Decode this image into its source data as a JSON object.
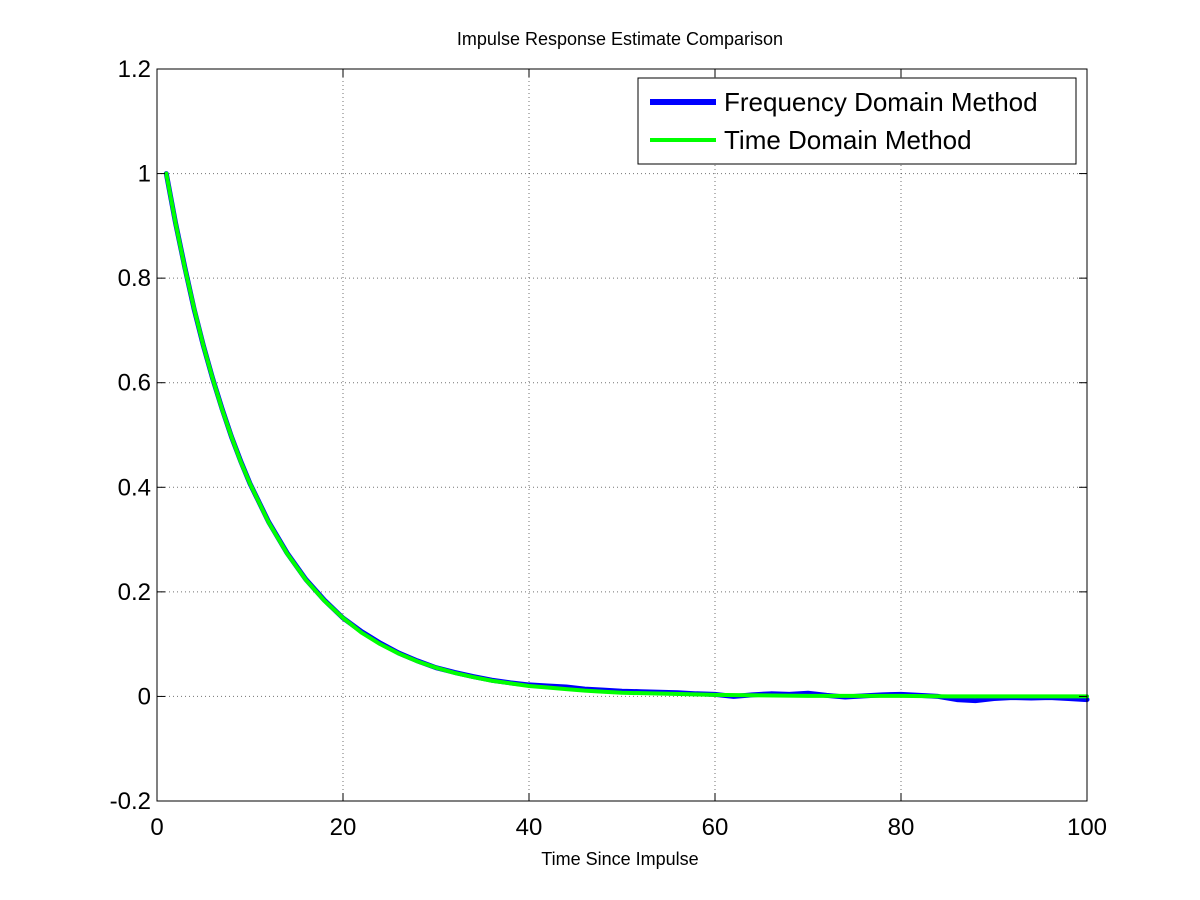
{
  "chart_data": {
    "type": "line",
    "title": "Impulse Response Estimate Comparison",
    "xlabel": "Time Since Impulse",
    "ylabel": "",
    "xlim": [
      0,
      100
    ],
    "ylim": [
      -0.2,
      1.2
    ],
    "xticks": [
      0,
      20,
      40,
      60,
      80,
      100
    ],
    "yticks": [
      -0.2,
      0,
      0.2,
      0.4,
      0.6,
      0.8,
      1,
      1.2
    ],
    "xtick_labels": [
      "0",
      "20",
      "40",
      "60",
      "80",
      "100"
    ],
    "ytick_labels": [
      "-0.2",
      "0",
      "0.2",
      "0.4",
      "0.6",
      "0.8",
      "1",
      "1.2"
    ],
    "grid": true,
    "legend_position": "top-right",
    "series": [
      {
        "name": "Frequency Domain Method",
        "color": "#0000ff",
        "x": [
          1,
          2,
          3,
          4,
          5,
          6,
          7,
          8,
          9,
          10,
          12,
          14,
          16,
          18,
          20,
          22,
          24,
          26,
          28,
          30,
          32,
          34,
          36,
          38,
          40,
          42,
          44,
          46,
          48,
          50,
          52,
          54,
          56,
          58,
          60,
          62,
          64,
          66,
          68,
          70,
          72,
          74,
          76,
          78,
          80,
          82,
          84,
          86,
          88,
          90,
          92,
          94,
          96,
          98,
          100
        ],
        "y": [
          1.0,
          0.905,
          0.82,
          0.74,
          0.67,
          0.607,
          0.55,
          0.497,
          0.45,
          0.407,
          0.334,
          0.274,
          0.224,
          0.184,
          0.15,
          0.124,
          0.102,
          0.083,
          0.068,
          0.055,
          0.046,
          0.038,
          0.031,
          0.026,
          0.022,
          0.02,
          0.018,
          0.014,
          0.012,
          0.01,
          0.009,
          0.008,
          0.007,
          0.005,
          0.004,
          0.0,
          0.003,
          0.005,
          0.004,
          0.006,
          0.002,
          -0.001,
          0.001,
          0.003,
          0.004,
          0.002,
          0.0,
          -0.006,
          -0.008,
          -0.004,
          -0.002,
          -0.003,
          -0.002,
          -0.004,
          -0.006
        ]
      },
      {
        "name": "Time Domain Method",
        "color": "#00ff00",
        "x": [
          1,
          2,
          3,
          4,
          5,
          6,
          7,
          8,
          9,
          10,
          12,
          14,
          16,
          18,
          20,
          22,
          24,
          26,
          28,
          30,
          32,
          34,
          36,
          38,
          40,
          42,
          44,
          46,
          48,
          50,
          55,
          60,
          65,
          70,
          75,
          80,
          85,
          90,
          95,
          100
        ],
        "y": [
          1.0,
          0.905,
          0.819,
          0.741,
          0.67,
          0.607,
          0.549,
          0.497,
          0.449,
          0.407,
          0.333,
          0.273,
          0.223,
          0.183,
          0.15,
          0.122,
          0.1,
          0.082,
          0.067,
          0.055,
          0.045,
          0.037,
          0.03,
          0.025,
          0.02,
          0.017,
          0.014,
          0.011,
          0.009,
          0.007,
          0.005,
          0.003,
          0.002,
          0.001,
          0.001,
          0.001,
          0.0,
          0.0,
          0.0,
          0.0
        ]
      }
    ]
  }
}
